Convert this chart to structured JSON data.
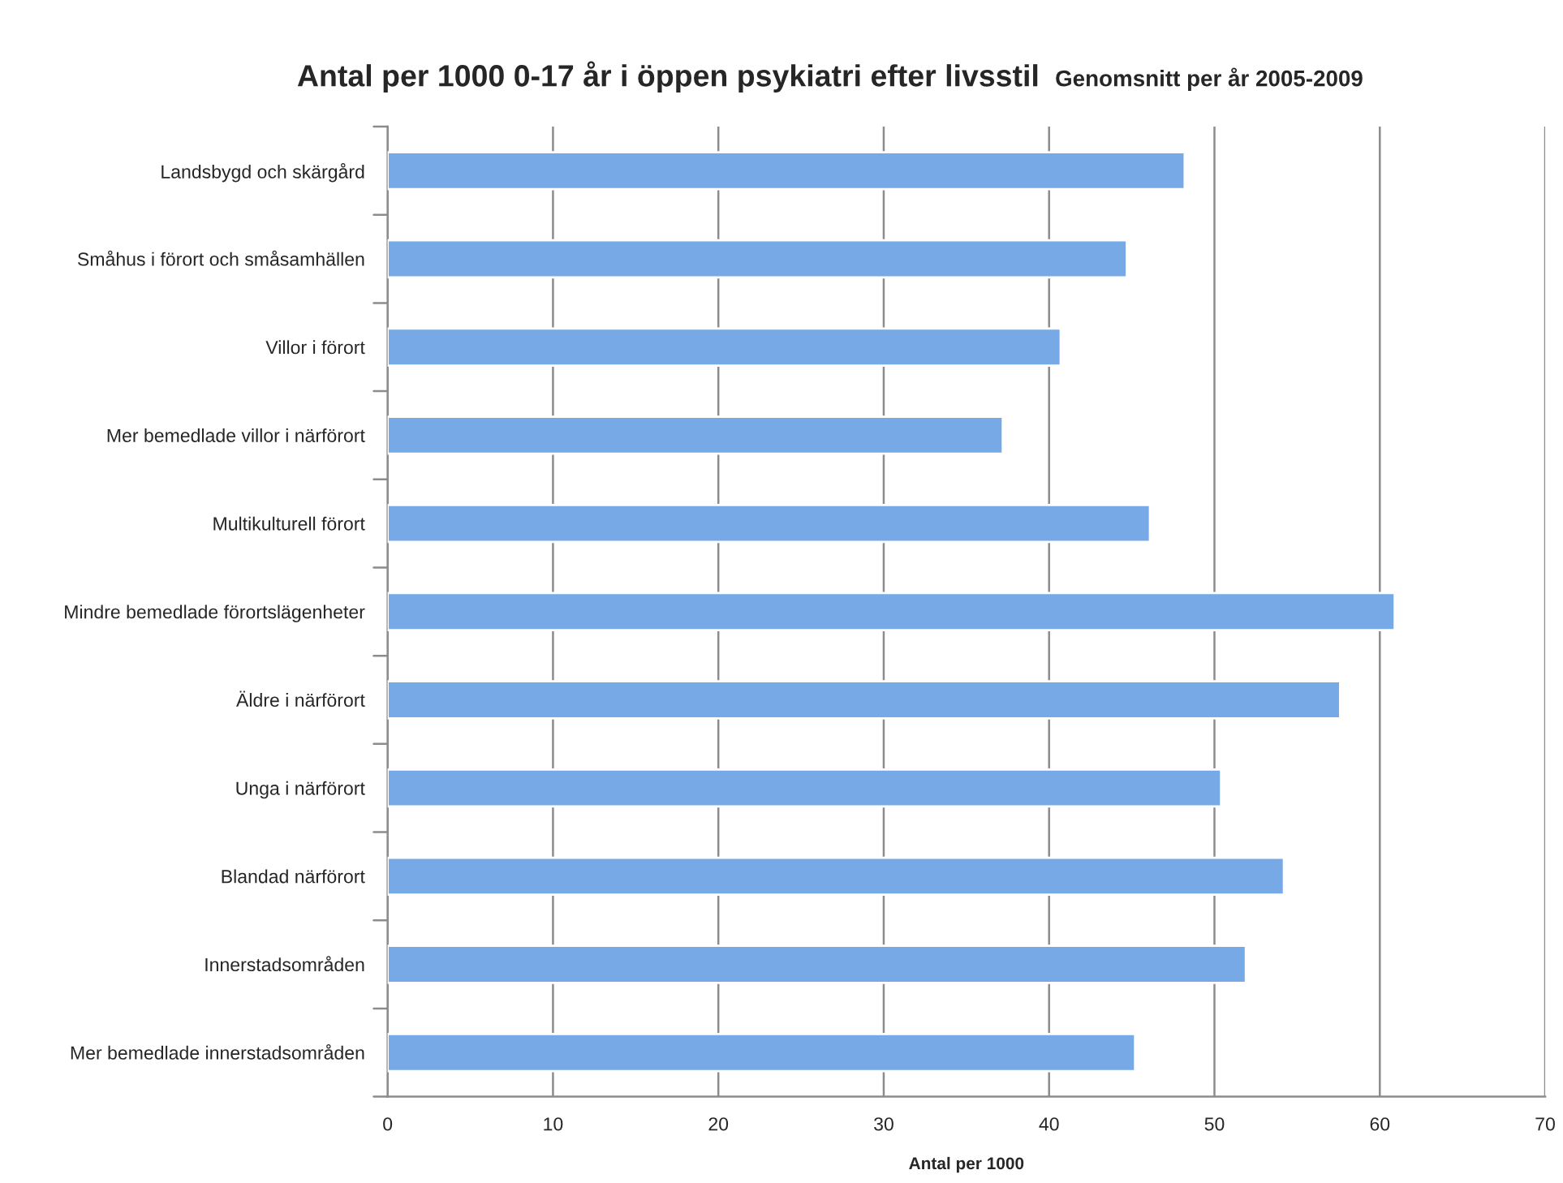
{
  "chart_data": {
    "type": "bar",
    "orientation": "horizontal",
    "title": "Antal per 1000 0-17 år i öppen psykiatri efter livsstil",
    "subtitle": "Genomsnitt per år 2005-2009",
    "xlabel": "Antal per 1000",
    "categories": [
      "Landsbygd och skärgård",
      "Småhus i förort och småsamhällen",
      "Villor i förort",
      "Mer bemedlade villor i närförort",
      "Multikulturell förort",
      "Mindre bemedlade förortslägenheter",
      "Äldre i närförort",
      "Unga i närförort",
      "Blandad närförort",
      "Innerstadsområden",
      "Mer bemedlade innerstadsområden"
    ],
    "values": [
      48.2,
      44.7,
      40.7,
      37.2,
      46.1,
      60.9,
      57.6,
      50.4,
      54.2,
      51.9,
      45.2
    ],
    "color": "#76a9e6",
    "xlim": [
      0,
      70
    ],
    "xticks": [
      0,
      10,
      20,
      30,
      40,
      50,
      60,
      70
    ],
    "grid": "x"
  }
}
